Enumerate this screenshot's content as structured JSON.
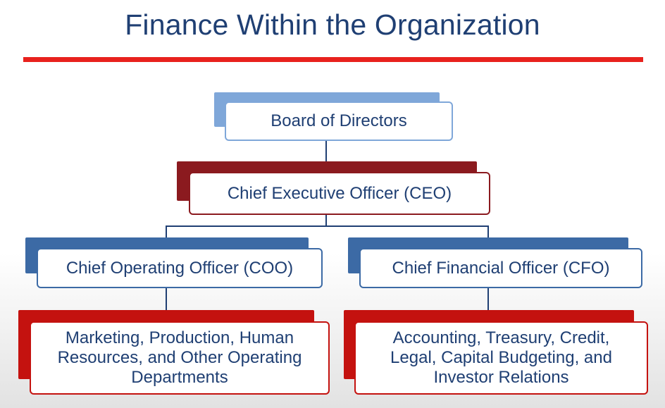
{
  "title": "Finance Within the Organization",
  "colors": {
    "title_text": "#1f3f73",
    "title_rule": "#e8211d",
    "board_accent": "#7fa7d9",
    "ceo_accent": "#8b1a1f",
    "officer_accent": "#3c6aa5",
    "department_accent": "#c4120f",
    "connector": "#1f3f73"
  },
  "org_chart": {
    "board": "Board of Directors",
    "ceo": "Chief Executive Officer (CEO)",
    "coo": "Chief Operating Officer (COO)",
    "cfo": "Chief Financial Officer (CFO)",
    "coo_departments": "Marketing, Production, Human Resources, and Other Operating Departments",
    "cfo_departments": "Accounting, Treasury, Credit, Legal, Capital Budgeting, and Investor Relations"
  }
}
